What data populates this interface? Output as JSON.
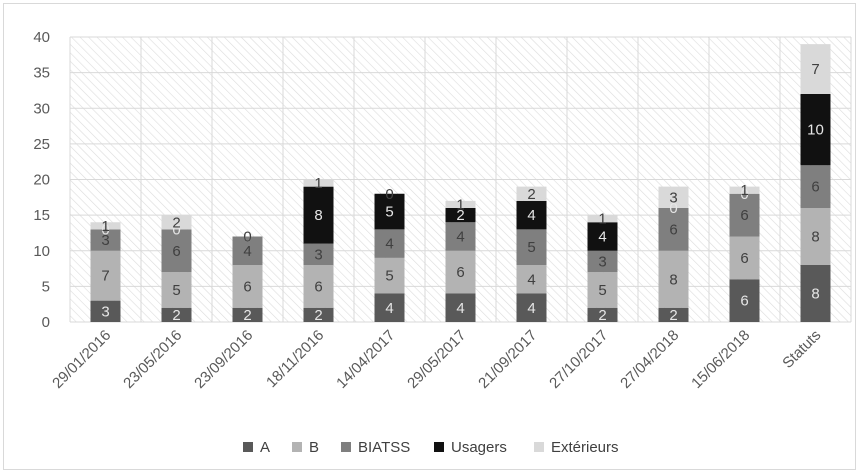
{
  "chart_data": {
    "type": "bar",
    "stacked": true,
    "categories": [
      "29/01/2016",
      "23/05/2016",
      "23/09/2016",
      "18/11/2016",
      "14/04/2017",
      "29/05/2017",
      "21/09/2017",
      "27/10/2017",
      "27/04/2018",
      "15/06/2018",
      "Statuts"
    ],
    "series": [
      {
        "name": "A",
        "values": [
          3,
          2,
          2,
          2,
          4,
          4,
          4,
          2,
          2,
          6,
          8
        ],
        "color": "#595959"
      },
      {
        "name": "B",
        "values": [
          7,
          5,
          6,
          6,
          5,
          6,
          4,
          5,
          8,
          6,
          8
        ],
        "color": "#b3b3b3"
      },
      {
        "name": "BIATSS",
        "values": [
          3,
          6,
          4,
          3,
          4,
          4,
          5,
          3,
          6,
          6,
          6
        ],
        "color": "#7f7f7f"
      },
      {
        "name": "Usagers",
        "values": [
          0,
          0,
          0,
          8,
          5,
          2,
          4,
          4,
          0,
          0,
          10
        ],
        "color": "#111111"
      },
      {
        "name": "Extérieurs",
        "values": [
          1,
          2,
          0,
          1,
          0,
          1,
          2,
          1,
          3,
          1,
          7
        ],
        "color": "#d9d9d9"
      }
    ],
    "title": "",
    "xlabel": "",
    "ylabel": "",
    "ylim": [
      0,
      40
    ],
    "yticks": [
      0,
      5,
      10,
      15,
      20,
      25,
      30,
      35,
      40
    ],
    "grid": true,
    "legend_position": "bottom",
    "data_labels": true
  }
}
